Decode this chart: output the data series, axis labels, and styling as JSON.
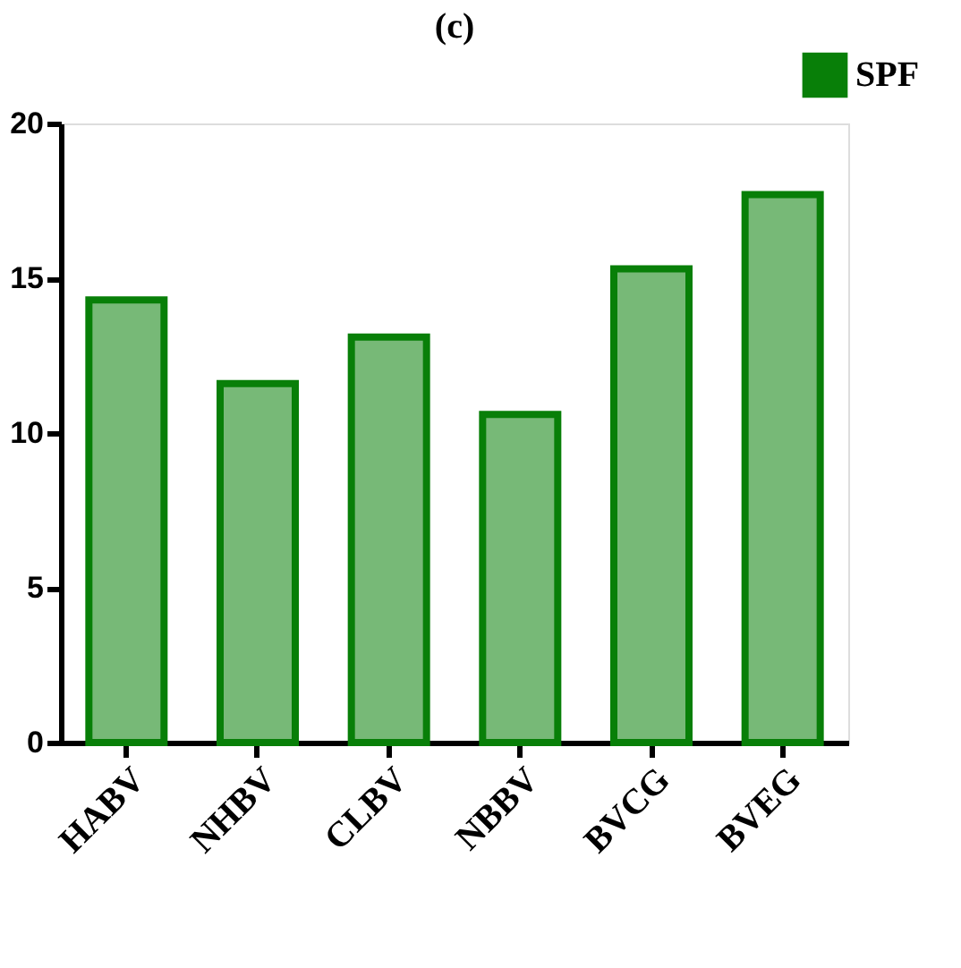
{
  "chart_data": {
    "type": "bar",
    "title": "(c)",
    "categories": [
      "HABV",
      "NHBV",
      "CLBV",
      "NBBV",
      "BVCG",
      "BVEG"
    ],
    "series": [
      {
        "name": "SPF",
        "color": "#087f08",
        "values": [
          14.3,
          11.6,
          13.1,
          10.6,
          15.3,
          17.7
        ]
      }
    ],
    "ylim": [
      0,
      20
    ],
    "yticks": [
      0,
      5,
      10,
      15,
      20
    ],
    "grid": false,
    "legend": "top right"
  }
}
